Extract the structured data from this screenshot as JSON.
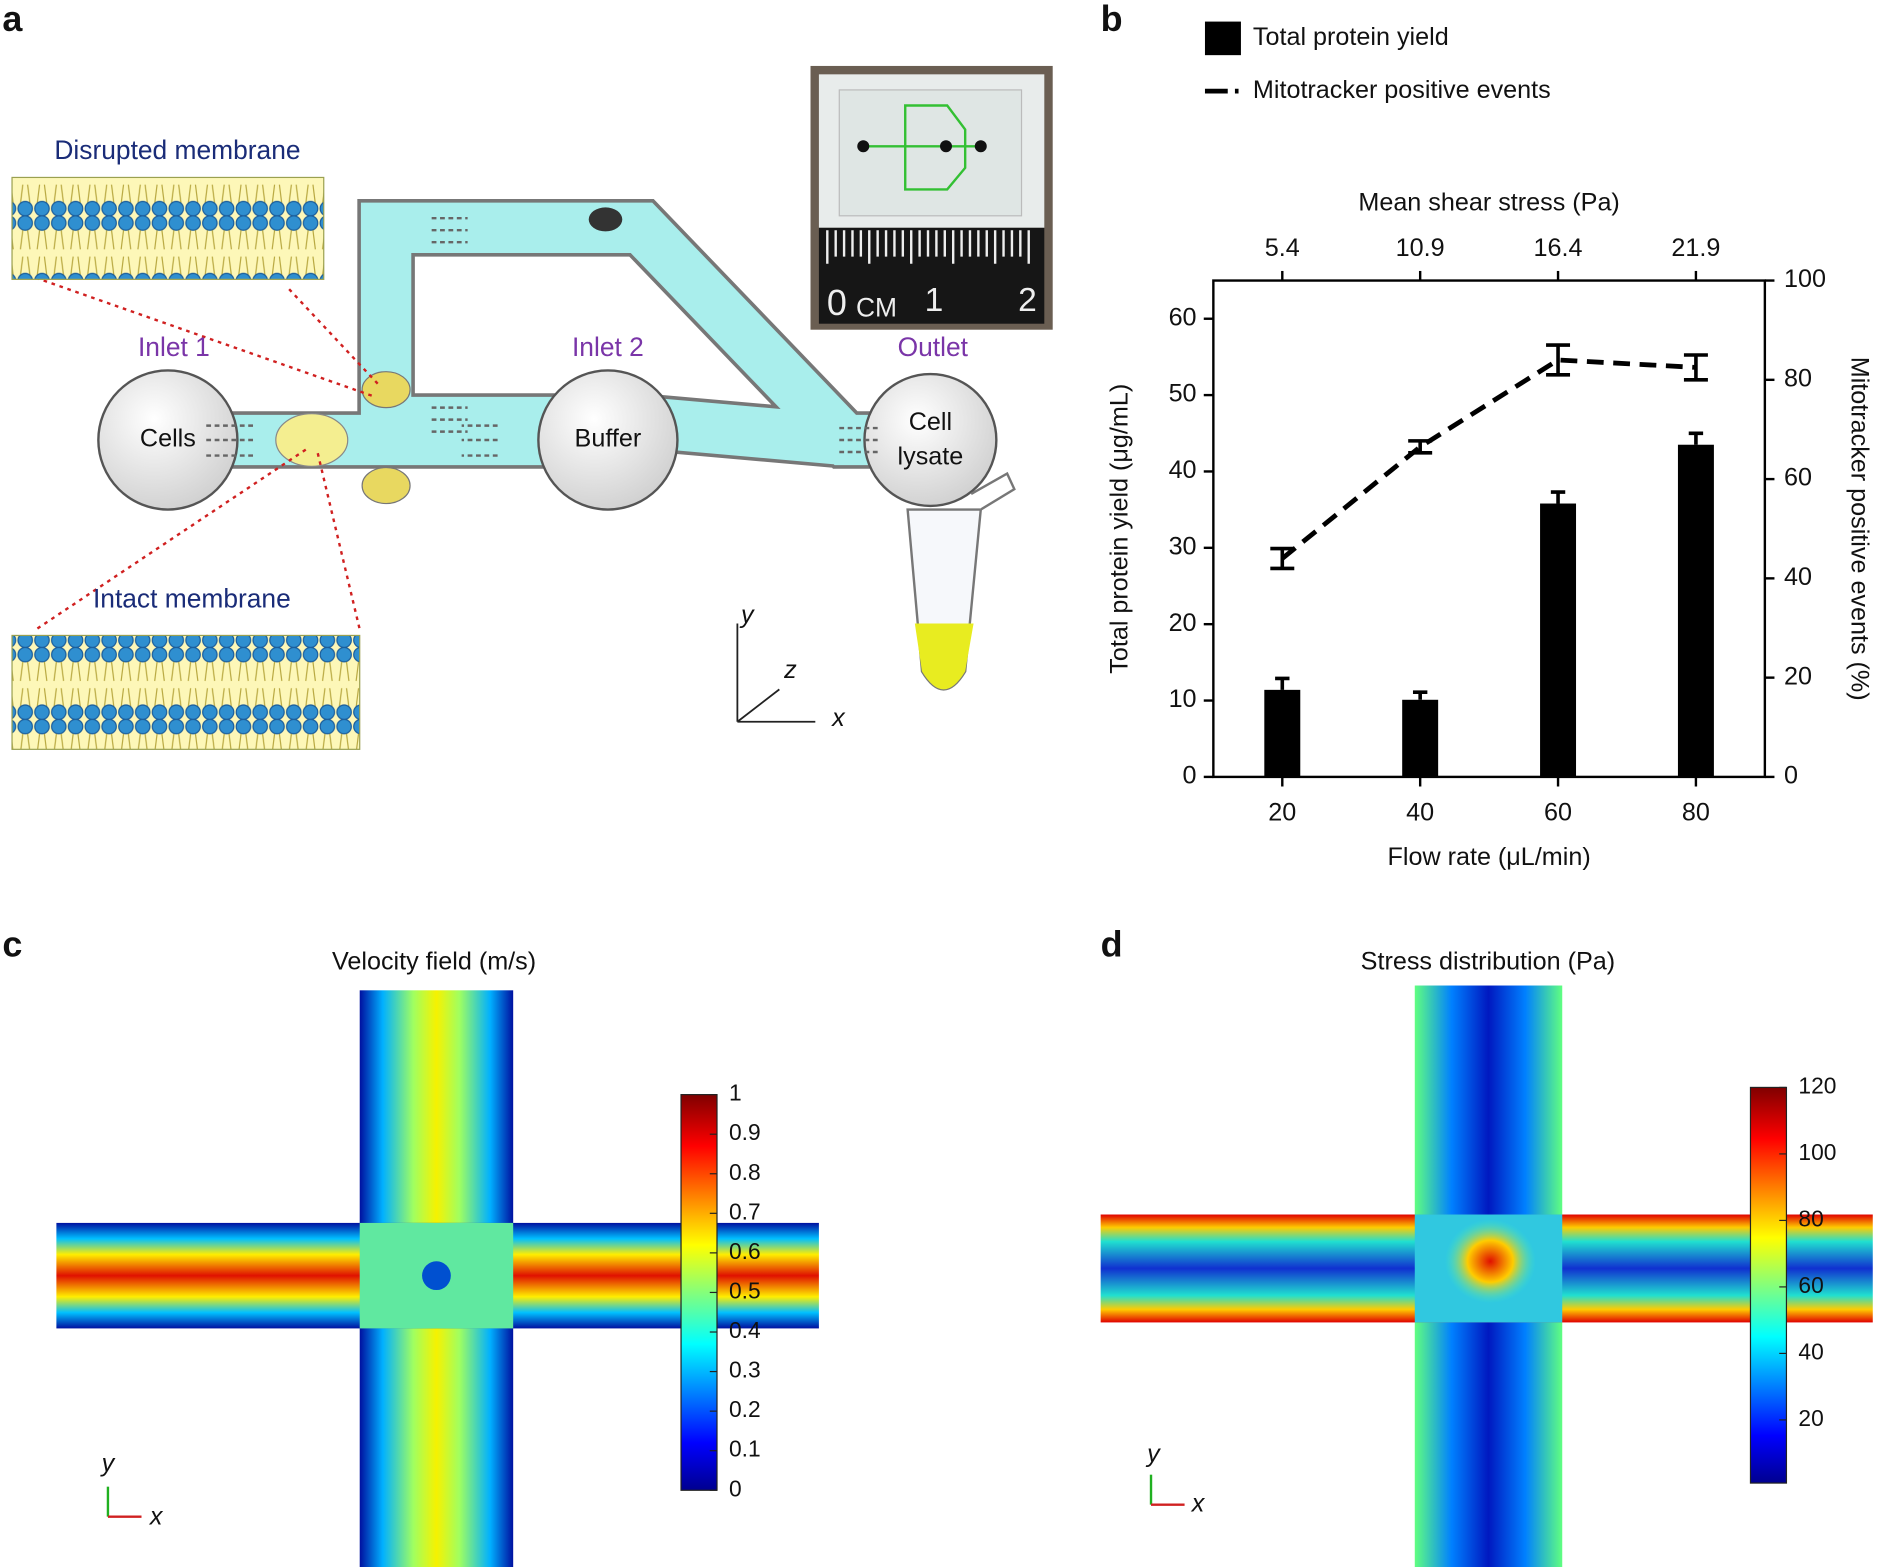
{
  "panel_labels": [
    "a",
    "b",
    "c",
    "d"
  ],
  "diagram": {
    "disrupted": "Disrupted membrane",
    "intact": "Intact membrane",
    "inlet1": "Inlet 1",
    "inlet2": "Inlet 2",
    "outlet": "Outlet",
    "cells": "Cells",
    "buffer": "Buffer",
    "lysate": [
      "Cell",
      "lysate"
    ],
    "axes": [
      "y",
      "z",
      "x"
    ],
    "ruler": [
      "0",
      "CM",
      "1",
      "2"
    ]
  },
  "chart_data": {
    "type": "bar",
    "x_label": "Flow rate (μL/min)",
    "x2_label": "Mean shear stress (Pa)",
    "y_label": "Total protein yield (μg/mL)",
    "y2_label": "Mitotracker positive events (%)",
    "x": [
      20,
      40,
      60,
      80
    ],
    "xlim": [
      10,
      90
    ],
    "xticks": [
      20,
      40,
      60,
      80
    ],
    "x2lim": [
      2.65,
      24.65
    ],
    "x2ticks": [
      5.4,
      10.9,
      16.4,
      21.9
    ],
    "ylim": [
      0,
      65
    ],
    "yticks": [
      0,
      10,
      20,
      30,
      40,
      50,
      60
    ],
    "y2lim": [
      0,
      100
    ],
    "y2ticks": [
      0,
      20,
      40,
      60,
      80,
      100
    ],
    "series": [
      {
        "name": "Total protein yield",
        "type": "bar",
        "color": "#000000",
        "values": [
          11.4,
          10.1,
          35.8,
          43.5
        ],
        "errors": [
          1.5,
          1.0,
          1.5,
          1.5
        ]
      },
      {
        "name": "Mitotracker positive events",
        "type": "line",
        "axis": "y2",
        "color": "#000000",
        "values": [
          44,
          66.5,
          84,
          82.5
        ],
        "errors": [
          2,
          1.2,
          3,
          2.5
        ]
      }
    ]
  },
  "fields": [
    {
      "title": "Velocity field (m/s)",
      "lim": [
        0,
        1
      ],
      "ticks": [
        0,
        0.1,
        0.2,
        0.3,
        0.4,
        0.5,
        0.6,
        0.7,
        0.8,
        0.9,
        1
      ]
    },
    {
      "title": "Stress distribution (Pa)",
      "lim": [
        1,
        120
      ],
      "ticks": [
        20,
        40,
        60,
        80,
        100,
        120
      ]
    }
  ],
  "field_axes": [
    "y",
    "x"
  ]
}
